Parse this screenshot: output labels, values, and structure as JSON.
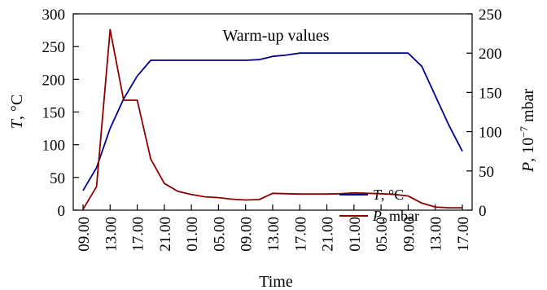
{
  "chart_data": {
    "type": "line",
    "title": "Warm-up values",
    "xlabel": "Time",
    "ylabel_left": {
      "italic": "T",
      "rest": ", °C"
    },
    "ylabel_right": {
      "italic": "P",
      "rest": ", 10",
      "sup": "−7",
      "tail": " mbar"
    },
    "ylim_left": [
      0,
      300
    ],
    "yticks_left": [
      "0",
      "50",
      "100",
      "150",
      "200",
      "250",
      "300"
    ],
    "ylim_right": [
      0,
      250
    ],
    "yticks_right": [
      "0",
      "50",
      "100",
      "150",
      "200",
      "250"
    ],
    "x_ticks": [
      "09.00",
      "13.00",
      "17.00",
      "21.00",
      "01.00",
      "05.00",
      "09.00",
      "13.00",
      "17.00",
      "21.00",
      "01.00",
      "05.00",
      "09.00",
      "13.00",
      "17.00"
    ],
    "x_start_hour": 9,
    "x_end_hour": 65,
    "legend": "right",
    "series": [
      {
        "name": {
          "italic": "T",
          "rest": ", °C"
        },
        "axis": "left",
        "color": "#00008b",
        "points": [
          {
            "h": 9,
            "v": 30
          },
          {
            "h": 11,
            "v": 65
          },
          {
            "h": 13,
            "v": 125
          },
          {
            "h": 15,
            "v": 170
          },
          {
            "h": 17,
            "v": 205
          },
          {
            "h": 19,
            "v": 229
          },
          {
            "h": 21,
            "v": 229
          },
          {
            "h": 23,
            "v": 229
          },
          {
            "h": 25,
            "v": 229
          },
          {
            "h": 27,
            "v": 229
          },
          {
            "h": 29,
            "v": 229
          },
          {
            "h": 31,
            "v": 229
          },
          {
            "h": 33,
            "v": 229
          },
          {
            "h": 35,
            "v": 230
          },
          {
            "h": 37,
            "v": 235
          },
          {
            "h": 39,
            "v": 237
          },
          {
            "h": 41,
            "v": 240
          },
          {
            "h": 43,
            "v": 240
          },
          {
            "h": 45,
            "v": 240
          },
          {
            "h": 47,
            "v": 240
          },
          {
            "h": 49,
            "v": 240
          },
          {
            "h": 51,
            "v": 240
          },
          {
            "h": 53,
            "v": 240
          },
          {
            "h": 55,
            "v": 240
          },
          {
            "h": 57,
            "v": 240
          },
          {
            "h": 59,
            "v": 220
          },
          {
            "h": 61,
            "v": 175
          },
          {
            "h": 63,
            "v": 130
          },
          {
            "h": 65,
            "v": 90
          }
        ]
      },
      {
        "name": {
          "italic": "P",
          "rest": ", mbar"
        },
        "axis": "right",
        "color": "#8b0000",
        "points": [
          {
            "h": 9,
            "v": 1
          },
          {
            "h": 11,
            "v": 30
          },
          {
            "h": 13,
            "v": 230
          },
          {
            "h": 15,
            "v": 140
          },
          {
            "h": 17,
            "v": 140
          },
          {
            "h": 19,
            "v": 65
          },
          {
            "h": 21,
            "v": 34
          },
          {
            "h": 23,
            "v": 24
          },
          {
            "h": 25,
            "v": 20
          },
          {
            "h": 27,
            "v": 17
          },
          {
            "h": 29,
            "v": 16
          },
          {
            "h": 31,
            "v": 14
          },
          {
            "h": 33,
            "v": 13
          },
          {
            "h": 35,
            "v": 13.5
          },
          {
            "h": 37,
            "v": 21.5
          },
          {
            "h": 39,
            "v": 21
          },
          {
            "h": 41,
            "v": 20.5
          },
          {
            "h": 43,
            "v": 20.5
          },
          {
            "h": 45,
            "v": 20.5
          },
          {
            "h": 47,
            "v": 21
          },
          {
            "h": 49,
            "v": 22
          },
          {
            "h": 51,
            "v": 21.5
          },
          {
            "h": 53,
            "v": 21
          },
          {
            "h": 55,
            "v": 20
          },
          {
            "h": 57,
            "v": 18
          },
          {
            "h": 59,
            "v": 9
          },
          {
            "h": 61,
            "v": 4
          },
          {
            "h": 63,
            "v": 3
          },
          {
            "h": 65,
            "v": 3
          }
        ]
      }
    ]
  }
}
